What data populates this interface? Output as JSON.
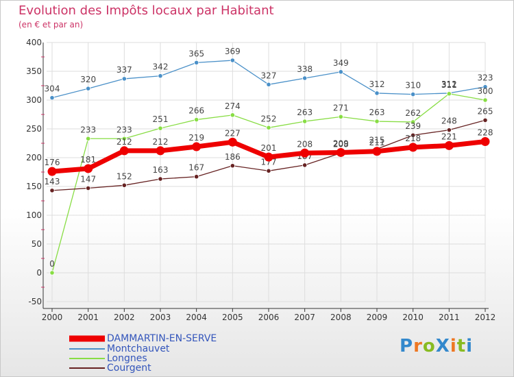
{
  "chart_data": {
    "type": "line",
    "title": "Evolution des Impôts locaux par Habitant",
    "subtitle": "(en € et par an)",
    "ylim": [
      -50,
      400
    ],
    "yticks": [
      -50,
      0,
      50,
      100,
      150,
      200,
      250,
      300,
      350,
      400
    ],
    "categories": [
      "2000",
      "2001",
      "2002",
      "2003",
      "2004",
      "2005",
      "2006",
      "2007",
      "2008",
      "2009",
      "2010",
      "2011",
      "2012"
    ],
    "grid": true,
    "legend_position": "bottom-left",
    "series": [
      {
        "name": "Montchauvet",
        "color": "#4a90c8",
        "values": [
          304,
          320,
          337,
          342,
          365,
          369,
          327,
          338,
          349,
          312,
          310,
          312,
          323
        ]
      },
      {
        "name": "Longnes",
        "color": "#88dd44",
        "values": [
          0,
          233,
          233,
          251,
          266,
          274,
          252,
          263,
          271,
          263,
          262,
          311,
          300
        ]
      },
      {
        "name": "Courgent",
        "color": "#662222",
        "values": [
          143,
          147,
          152,
          163,
          167,
          186,
          177,
          187,
          208,
          215,
          239,
          248,
          265
        ]
      },
      {
        "name": "DAMMARTIN-EN-SERVE",
        "color": "#ee0000",
        "values": [
          176,
          181,
          212,
          212,
          219,
          227,
          201,
          208,
          209,
          211,
          218,
          221,
          228
        ]
      }
    ]
  },
  "legend": [
    {
      "label": "DAMMARTIN-EN-SERVE",
      "color": "#ee0000"
    },
    {
      "label": "Montchauvet",
      "color": "#4a90c8"
    },
    {
      "label": "Longnes",
      "color": "#88dd44"
    },
    {
      "label": "Courgent",
      "color": "#662222"
    }
  ],
  "logo": {
    "text": "ProXiti",
    "letters": [
      "P",
      "r",
      "o",
      "X",
      "i",
      "t",
      "i"
    ],
    "colors": [
      "#3388cc",
      "#ee7722",
      "#88bb22",
      "#3388cc",
      "#ee7722",
      "#88bb22",
      "#3388cc"
    ]
  }
}
